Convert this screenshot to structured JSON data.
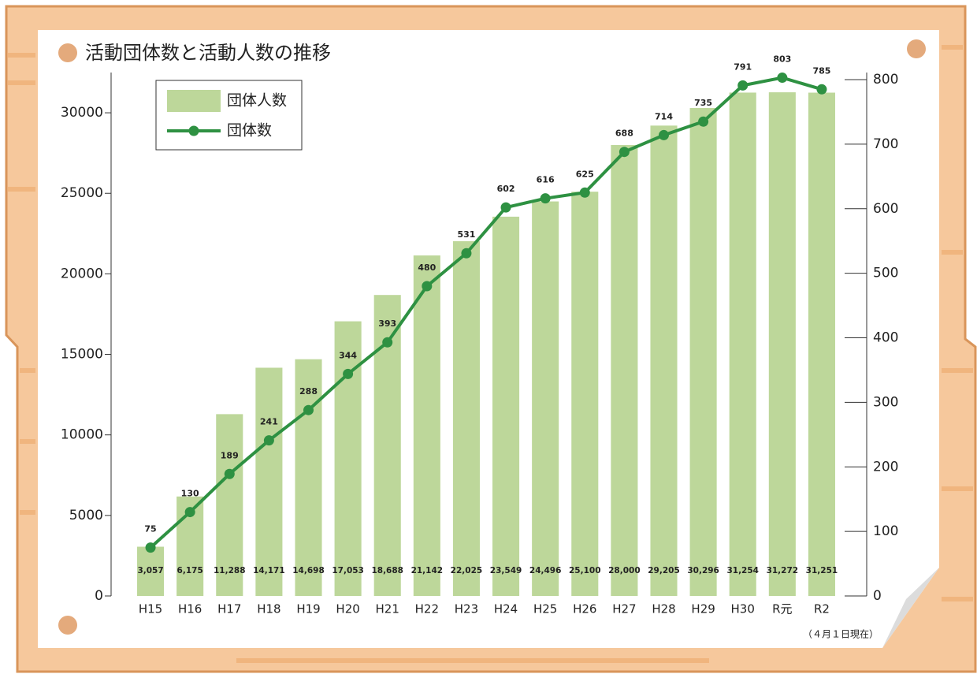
{
  "chart_data": {
    "type": "combo",
    "title": "活動団体数と活動人数の推移",
    "annotation": "（４月１日現在）",
    "categories": [
      "H15",
      "H16",
      "H17",
      "H18",
      "H19",
      "H20",
      "H21",
      "H22",
      "H23",
      "H24",
      "H25",
      "H26",
      "H27",
      "H28",
      "H29",
      "H30",
      "R元",
      "R2"
    ],
    "series": [
      {
        "name": "団体人数",
        "type": "bar",
        "axis": "y",
        "color": "#bdd79a",
        "values": [
          3057,
          6175,
          11288,
          14171,
          14698,
          17053,
          18688,
          21142,
          22025,
          23549,
          24496,
          25100,
          28000,
          29205,
          30296,
          31254,
          31272,
          31251
        ],
        "value_labels": [
          "3,057",
          "6,175",
          "11,288",
          "14,171",
          "14,698",
          "17,053",
          "18,688",
          "21,142",
          "22,025",
          "23,549",
          "24,496",
          "25,100",
          "28,000",
          "29,205",
          "30,296",
          "31,254",
          "31,272",
          "31,251"
        ]
      },
      {
        "name": "団体数",
        "type": "line",
        "axis": "y2",
        "color": "#2e9142",
        "values": [
          75,
          130,
          189,
          241,
          288,
          344,
          393,
          480,
          531,
          602,
          616,
          625,
          688,
          714,
          735,
          791,
          803,
          785
        ]
      }
    ],
    "ylim": [
      0,
      32500
    ],
    "yticks": [
      0,
      5000,
      10000,
      15000,
      20000,
      25000,
      30000
    ],
    "y2lim": [
      0,
      811
    ],
    "y2ticks": [
      0,
      100,
      200,
      300,
      400,
      500,
      600,
      700,
      800
    ],
    "legend": "upper left"
  }
}
